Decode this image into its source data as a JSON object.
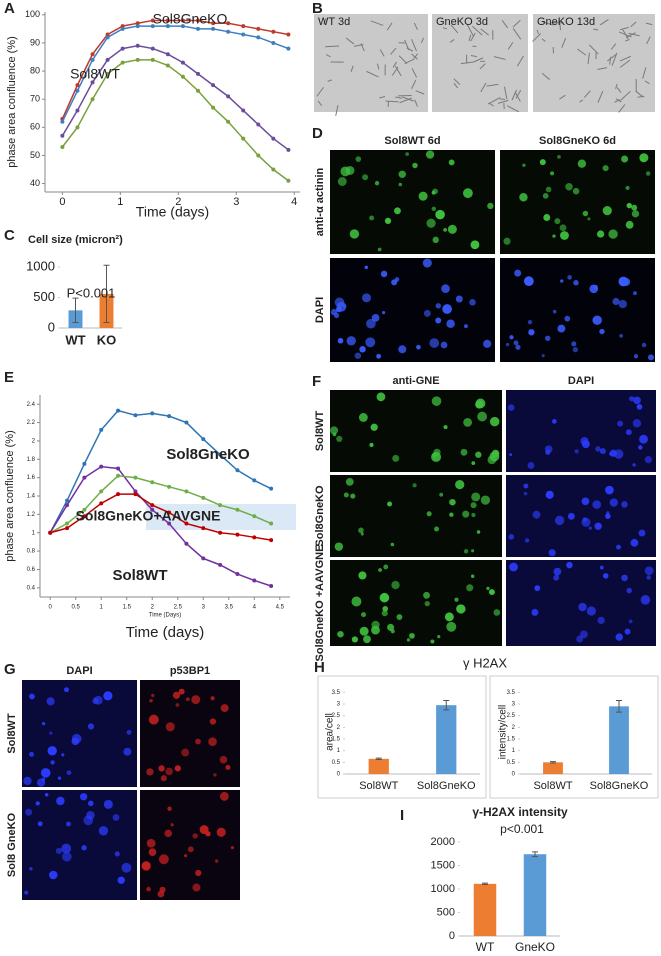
{
  "panel_labels": [
    "A",
    "B",
    "C",
    "D",
    "E",
    "F",
    "G",
    "H",
    "I"
  ],
  "image_panels": {
    "B": {
      "labels": [
        "WT 3d",
        "GneKO 3d",
        "GneKO 13d"
      ]
    },
    "D": {
      "columns": [
        "Sol8WT 6d",
        "Sol8GneKO 6d"
      ],
      "rows": [
        "anti-α actinin",
        "DAPI"
      ]
    },
    "F": {
      "columns": [
        "anti-GNE",
        "DAPI"
      ],
      "rows": [
        "Sol8WT",
        "Sol8GneKO",
        "Sol8GneKO +AAVGNE"
      ]
    },
    "G": {
      "columns": [
        "DAPI",
        "p53BP1"
      ],
      "rows": [
        "Sol8WT",
        "Sol8 GneKO"
      ]
    }
  },
  "panel_h_title": "γ H2AX",
  "chart_data": [
    {
      "type": "line",
      "xlabel": "Time (days)",
      "ylabel": "phase area confluence (%)",
      "x": [
        0,
        0.26,
        0.52,
        0.78,
        1.04,
        1.3,
        1.56,
        1.82,
        2.08,
        2.34,
        2.6,
        2.86,
        3.12,
        3.38,
        3.64,
        3.9
      ],
      "series": [
        {
          "color": "#c0392b",
          "values": [
            63,
            75,
            86,
            93,
            96,
            97,
            98,
            98,
            98,
            98,
            97,
            97,
            96,
            95,
            94,
            93
          ]
        },
        {
          "color": "#3f7fbf",
          "values": [
            62,
            73,
            84,
            92,
            95,
            96,
            96,
            96,
            96,
            95,
            95,
            94,
            93,
            92,
            90,
            88
          ]
        },
        {
          "color": "#6a4c9c",
          "values": [
            57,
            66,
            76,
            84,
            88,
            89,
            88,
            86,
            83,
            79,
            75,
            71,
            66,
            61,
            56,
            52
          ]
        },
        {
          "color": "#7aa03c",
          "values": [
            53,
            60,
            70,
            79,
            83,
            84,
            84,
            82,
            78,
            73,
            67,
            62,
            56,
            50,
            45,
            41
          ]
        }
      ],
      "annotations": [
        "Sol8GneKO",
        "Sol8WT"
      ],
      "xlim": [
        -0.3,
        4.1
      ],
      "xticks": [
        0,
        1,
        2,
        3,
        4
      ],
      "ylim": [
        37,
        101
      ],
      "yticks": [
        40,
        50,
        60,
        70,
        80,
        90,
        100
      ]
    },
    {
      "type": "bar",
      "title": "Cell size (micron²)",
      "categories": [
        "WT",
        "KO"
      ],
      "values": [
        290,
        560
      ],
      "errors": [
        200,
        470
      ],
      "colors": [
        "#5b9bd5",
        "#ed7d31"
      ],
      "annotations": [
        "P<0.001"
      ],
      "ylim": [
        0,
        1150
      ],
      "yticks": [
        0,
        500,
        1000
      ]
    },
    {
      "type": "line",
      "xlabel": "Time (days)",
      "x_axis_note": "Time (Days)",
      "ylabel": "phase area confluence (%)",
      "x": [
        0,
        0.33,
        0.67,
        1,
        1.33,
        1.67,
        2,
        2.33,
        2.67,
        3,
        3.33,
        3.67,
        4,
        4.33
      ],
      "series": [
        {
          "color": "#2e75b6",
          "values": [
            1,
            1.35,
            1.75,
            2.12,
            2.33,
            2.28,
            2.3,
            2.27,
            2.2,
            2.02,
            1.85,
            1.68,
            1.57,
            1.48
          ]
        },
        {
          "color": "#7030a0",
          "values": [
            1,
            1.3,
            1.6,
            1.72,
            1.7,
            1.45,
            1.25,
            1.1,
            0.88,
            0.72,
            0.65,
            0.55,
            0.48,
            0.42
          ]
        },
        {
          "color": "#70ad47",
          "values": [
            1,
            1.1,
            1.25,
            1.45,
            1.62,
            1.6,
            1.55,
            1.5,
            1.45,
            1.38,
            1.3,
            1.25,
            1.18,
            1.1
          ]
        },
        {
          "color": "#c00000",
          "values": [
            1,
            1.05,
            1.18,
            1.32,
            1.42,
            1.42,
            1.3,
            1.22,
            1.1,
            1.05,
            1.0,
            0.98,
            0.95,
            0.92
          ]
        }
      ],
      "annotations": [
        "Sol8GneKO",
        "Sol8GneKO+AAVGNE",
        "Sol8WT"
      ],
      "xlim": [
        -0.2,
        4.7
      ],
      "xticks": [
        0,
        0.5,
        1,
        1.5,
        2,
        2.5,
        3,
        3.5,
        4,
        4.5
      ],
      "ylim": [
        0.3,
        2.5
      ],
      "yticks": [
        0.4,
        0.6,
        0.8,
        1,
        1.2,
        1.4,
        1.6,
        1.8,
        2,
        2.2,
        2.4
      ]
    },
    {
      "type": "bar",
      "ylabel": "area/cell",
      "categories": [
        "Sol8WT",
        "Sol8GneKO"
      ],
      "values": [
        0.65,
        2.95
      ],
      "errors": [
        0.03,
        0.2
      ],
      "colors": [
        "#ed7d31",
        "#5b9bd5"
      ],
      "ylim": [
        0,
        3.6
      ],
      "yticks": [
        0,
        0.5,
        1,
        1.5,
        2,
        2.5,
        3,
        3.5
      ]
    },
    {
      "type": "bar",
      "ylabel": "intensity/cell",
      "categories": [
        "Sol8WT",
        "Sol8GneKO"
      ],
      "values": [
        0.5,
        2.9
      ],
      "errors": [
        0.03,
        0.25
      ],
      "colors": [
        "#ed7d31",
        "#5b9bd5"
      ],
      "ylim": [
        0,
        3.6
      ],
      "yticks": [
        0,
        0.5,
        1,
        1.5,
        2,
        2.5,
        3,
        3.5
      ]
    },
    {
      "type": "bar",
      "title": "γ-H2AX intensity",
      "categories": [
        "WT",
        "GneKO"
      ],
      "values": [
        1110,
        1740
      ],
      "errors": [
        15,
        50
      ],
      "colors": [
        "#ed7d31",
        "#5b9bd5"
      ],
      "annotations": [
        "p<0.001"
      ],
      "ylim": [
        0,
        2000
      ],
      "yticks": [
        0,
        500,
        1000,
        1500,
        2000
      ]
    }
  ]
}
